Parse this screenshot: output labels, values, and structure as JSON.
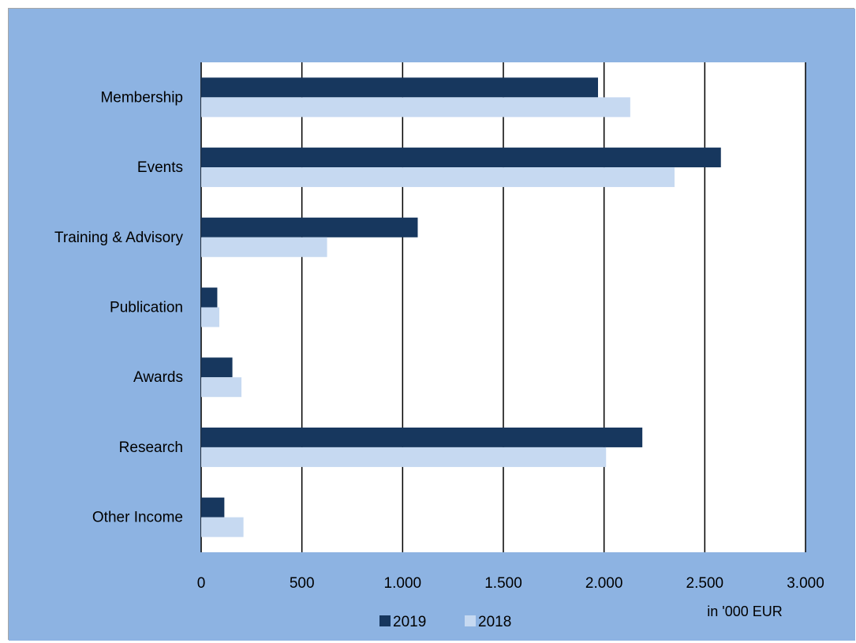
{
  "chart_data": {
    "type": "bar",
    "orientation": "horizontal",
    "categories": [
      "Membership",
      "Events",
      "Training & Advisory",
      "Publication",
      "Awards",
      "Research",
      "Other Income"
    ],
    "series": [
      {
        "name": "2019",
        "values": [
          1970,
          2580,
          1075,
          80,
          155,
          2190,
          115
        ],
        "color": "#17375e"
      },
      {
        "name": "2018",
        "values": [
          2130,
          2350,
          625,
          90,
          200,
          2010,
          210
        ],
        "color": "#c6d9f1"
      }
    ],
    "xlim": [
      0,
      3000
    ],
    "xticks": [
      0,
      500,
      1000,
      1500,
      2000,
      2500,
      3000
    ],
    "xtick_labels": [
      "0",
      "500",
      "1.000",
      "1.500",
      "2.000",
      "2.500",
      "3.000"
    ],
    "unit_label": "in '000 EUR",
    "grid": "vertical",
    "legend_position": "bottom",
    "background_color": "#8db3e2",
    "plot_area_color": "#ffffff"
  }
}
